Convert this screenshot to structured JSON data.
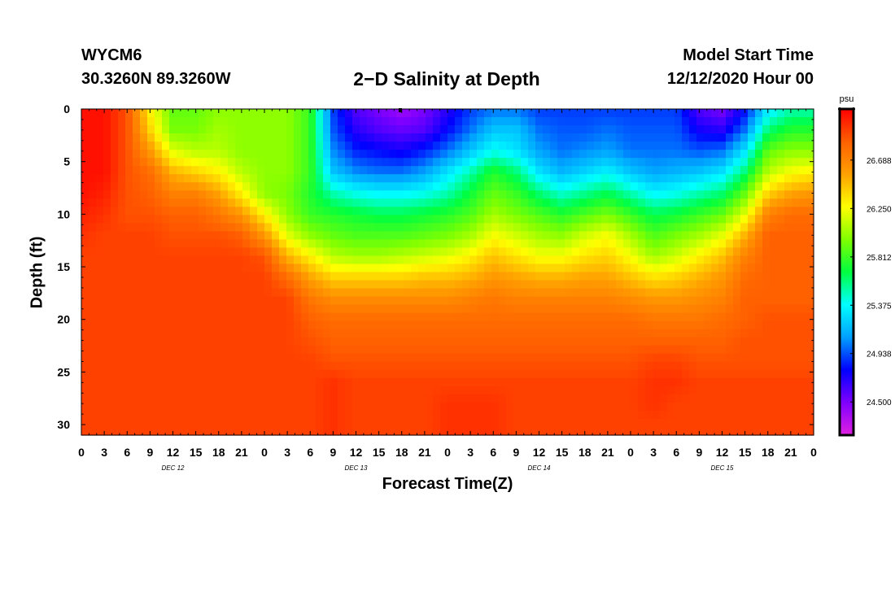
{
  "header": {
    "station": "WYCM6",
    "coordinates": "30.3260N 89.3260W",
    "title": "2−D Salinity at Depth",
    "start_label": "Model Start Time",
    "start_value": "12/12/2020 Hour 00"
  },
  "chart_data": {
    "type": "heatmap",
    "title": "2−D Salinity at Depth",
    "xlabel": "Forecast Time(Z)",
    "ylabel": "Depth (ft)",
    "x_tick_labels": [
      "0",
      "3",
      "6",
      "9",
      "12",
      "15",
      "18",
      "21",
      "0",
      "3",
      "6",
      "9",
      "12",
      "15",
      "18",
      "21",
      "0",
      "3",
      "6",
      "9",
      "12",
      "15",
      "18",
      "21",
      "0",
      "3",
      "6",
      "9",
      "12",
      "15",
      "18",
      "21",
      "0"
    ],
    "day_labels": [
      "DEC 12",
      "DEC 13",
      "DEC 14",
      "DEC 15"
    ],
    "x_range_hours": [
      0,
      96
    ],
    "y_tick_labels": [
      "0",
      "5",
      "10",
      "15",
      "20",
      "25",
      "30"
    ],
    "y_range_ft": [
      0,
      31
    ],
    "colorbar": {
      "unit": "psu",
      "tick_labels": [
        "26.688",
        "26.250",
        "25.812",
        "25.375",
        "24.938",
        "24.500"
      ],
      "range": [
        24.2,
        27.15
      ],
      "colors": [
        "#e020e0",
        "#7f00ff",
        "#0000ff",
        "#00a0ff",
        "#00ffff",
        "#00ff40",
        "#80ff00",
        "#ffff00",
        "#ffa000",
        "#ff6000",
        "#ff0000"
      ]
    },
    "depth_levels_ft": [
      0,
      2,
      4,
      6,
      8,
      10,
      12,
      14,
      16,
      18,
      20,
      22,
      24,
      26,
      28,
      30
    ],
    "time_hours": [
      0,
      3,
      6,
      9,
      12,
      15,
      18,
      21,
      24,
      27,
      30,
      33,
      36,
      39,
      42,
      45,
      48,
      51,
      54,
      57,
      60,
      63,
      66,
      69,
      72,
      75,
      78,
      81,
      84,
      87,
      90,
      93,
      96
    ],
    "salinity_profiles_psu": [
      {
        "t": 0,
        "values": [
          27.1,
          27.1,
          27.1,
          27.1,
          27.1,
          27.05,
          27.0,
          26.95,
          26.95,
          26.95,
          26.95,
          26.95,
          26.95,
          26.95,
          26.95,
          26.95
        ]
      },
      {
        "t": 3,
        "values": [
          27.1,
          27.1,
          27.1,
          27.1,
          27.05,
          27.0,
          26.95,
          26.95,
          26.95,
          26.95,
          26.95,
          26.95,
          26.95,
          26.95,
          26.95,
          26.95
        ]
      },
      {
        "t": 6,
        "values": [
          26.9,
          26.9,
          26.9,
          26.9,
          26.9,
          26.9,
          26.95,
          26.95,
          26.95,
          26.95,
          26.95,
          26.95,
          26.95,
          26.95,
          26.95,
          26.95
        ]
      },
      {
        "t": 9,
        "values": [
          26.3,
          26.4,
          26.6,
          26.8,
          26.85,
          26.9,
          26.95,
          26.95,
          26.95,
          26.95,
          26.95,
          26.95,
          26.95,
          26.95,
          26.95,
          26.95
        ]
      },
      {
        "t": 12,
        "values": [
          25.9,
          25.95,
          26.2,
          26.5,
          26.7,
          26.85,
          26.9,
          26.95,
          26.95,
          26.95,
          26.95,
          26.95,
          26.95,
          26.95,
          26.95,
          26.95
        ]
      },
      {
        "t": 15,
        "values": [
          25.9,
          25.95,
          26.1,
          26.4,
          26.7,
          26.85,
          26.9,
          26.95,
          26.95,
          26.95,
          26.95,
          26.95,
          26.95,
          26.95,
          26.95,
          26.95
        ]
      },
      {
        "t": 18,
        "values": [
          26.0,
          26.05,
          26.1,
          26.3,
          26.55,
          26.75,
          26.9,
          26.95,
          26.95,
          26.95,
          26.95,
          26.95,
          26.95,
          26.95,
          26.95,
          26.95
        ]
      },
      {
        "t": 21,
        "values": [
          26.0,
          26.0,
          26.0,
          26.1,
          26.3,
          26.6,
          26.85,
          26.95,
          26.95,
          26.95,
          26.95,
          26.95,
          26.95,
          26.95,
          26.95,
          26.95
        ]
      },
      {
        "t": 24,
        "values": [
          26.0,
          26.0,
          26.0,
          26.0,
          26.0,
          26.3,
          26.6,
          26.9,
          26.95,
          26.95,
          26.95,
          26.95,
          26.95,
          26.95,
          26.95,
          26.95
        ]
      },
      {
        "t": 27,
        "values": [
          26.0,
          26.0,
          26.0,
          26.0,
          25.95,
          26.0,
          26.2,
          26.5,
          26.8,
          26.95,
          26.95,
          26.95,
          26.95,
          26.95,
          26.95,
          26.95
        ]
      },
      {
        "t": 30,
        "values": [
          25.8,
          25.8,
          25.8,
          25.8,
          25.75,
          25.8,
          26.0,
          26.3,
          26.55,
          26.75,
          26.85,
          26.9,
          26.95,
          26.95,
          26.95,
          26.95
        ]
      },
      {
        "t": 33,
        "values": [
          24.9,
          24.95,
          25.05,
          25.2,
          25.5,
          25.75,
          25.9,
          26.1,
          26.4,
          26.65,
          26.8,
          26.85,
          26.9,
          27.0,
          27.0,
          27.0
        ]
      },
      {
        "t": 36,
        "values": [
          24.6,
          24.7,
          24.85,
          25.05,
          25.4,
          25.7,
          25.85,
          26.05,
          26.4,
          26.65,
          26.8,
          26.85,
          26.9,
          26.95,
          26.95,
          26.95
        ]
      },
      {
        "t": 39,
        "values": [
          24.5,
          24.6,
          24.8,
          25.0,
          25.35,
          25.65,
          25.85,
          26.05,
          26.4,
          26.65,
          26.8,
          26.85,
          26.9,
          26.95,
          26.95,
          26.95
        ]
      },
      {
        "t": 42,
        "values": [
          24.4,
          24.55,
          24.75,
          25.0,
          25.35,
          25.65,
          25.85,
          26.1,
          26.4,
          26.65,
          26.8,
          26.85,
          26.9,
          26.95,
          26.95,
          26.95
        ]
      },
      {
        "t": 45,
        "values": [
          24.5,
          24.6,
          24.85,
          25.1,
          25.4,
          25.7,
          25.9,
          26.15,
          26.45,
          26.65,
          26.8,
          26.85,
          26.9,
          26.95,
          26.95,
          26.95
        ]
      },
      {
        "t": 48,
        "values": [
          24.7,
          24.8,
          25.0,
          25.3,
          25.5,
          25.75,
          25.95,
          26.2,
          26.45,
          26.65,
          26.8,
          26.85,
          26.9,
          26.95,
          27.0,
          27.0
        ]
      },
      {
        "t": 51,
        "values": [
          24.9,
          25.0,
          25.2,
          25.5,
          25.7,
          25.85,
          26.05,
          26.3,
          26.5,
          26.7,
          26.8,
          26.85,
          26.9,
          26.95,
          27.0,
          27.0
        ]
      },
      {
        "t": 54,
        "values": [
          25.0,
          25.2,
          25.4,
          25.75,
          25.9,
          26.05,
          26.25,
          26.45,
          26.6,
          26.75,
          26.8,
          26.85,
          26.9,
          26.95,
          27.0,
          27.0
        ]
      },
      {
        "t": 57,
        "values": [
          25.0,
          25.2,
          25.3,
          25.6,
          25.8,
          25.95,
          26.15,
          26.35,
          26.55,
          26.7,
          26.8,
          26.85,
          26.9,
          26.95,
          26.95,
          26.95
        ]
      },
      {
        "t": 60,
        "values": [
          24.9,
          25.0,
          25.1,
          25.3,
          25.6,
          25.85,
          26.05,
          26.25,
          26.5,
          26.7,
          26.8,
          26.85,
          26.9,
          26.95,
          26.95,
          26.95
        ]
      },
      {
        "t": 63,
        "values": [
          24.9,
          24.95,
          25.0,
          25.15,
          25.45,
          25.75,
          26.0,
          26.25,
          26.5,
          26.7,
          26.8,
          26.85,
          26.9,
          26.95,
          26.95,
          26.95
        ]
      },
      {
        "t": 66,
        "values": [
          24.9,
          24.95,
          25.05,
          25.25,
          25.55,
          25.85,
          26.15,
          26.35,
          26.55,
          26.7,
          26.8,
          26.85,
          26.9,
          26.95,
          26.95,
          26.95
        ]
      },
      {
        "t": 69,
        "values": [
          24.9,
          25.0,
          25.1,
          25.35,
          25.65,
          25.95,
          26.25,
          26.4,
          26.55,
          26.7,
          26.8,
          26.85,
          26.9,
          26.95,
          26.95,
          26.95
        ]
      },
      {
        "t": 72,
        "values": [
          24.9,
          24.95,
          25.0,
          25.2,
          25.5,
          25.8,
          26.05,
          26.25,
          26.45,
          26.65,
          26.8,
          26.85,
          26.9,
          26.95,
          26.95,
          26.95
        ]
      },
      {
        "t": 75,
        "values": [
          24.9,
          24.95,
          25.0,
          25.1,
          25.35,
          25.65,
          25.85,
          26.05,
          26.35,
          26.6,
          26.75,
          26.85,
          26.95,
          27.0,
          27.0,
          26.95
        ]
      },
      {
        "t": 78,
        "values": [
          24.9,
          24.95,
          25.0,
          25.15,
          25.4,
          25.7,
          25.95,
          26.15,
          26.4,
          26.6,
          26.75,
          26.85,
          26.95,
          27.0,
          26.95,
          26.95
        ]
      },
      {
        "t": 81,
        "values": [
          24.6,
          24.75,
          24.95,
          25.2,
          25.5,
          25.8,
          26.05,
          26.3,
          26.5,
          26.65,
          26.75,
          26.85,
          26.9,
          26.95,
          26.95,
          26.95
        ]
      },
      {
        "t": 84,
        "values": [
          24.5,
          24.7,
          25.0,
          25.3,
          25.6,
          25.9,
          26.2,
          26.45,
          26.6,
          26.7,
          26.8,
          26.85,
          26.9,
          26.95,
          26.95,
          26.95
        ]
      },
      {
        "t": 87,
        "values": [
          24.8,
          25.0,
          25.3,
          25.6,
          25.9,
          26.2,
          26.5,
          26.7,
          26.8,
          26.85,
          26.85,
          26.9,
          26.9,
          26.95,
          26.95,
          26.95
        ]
      },
      {
        "t": 90,
        "values": [
          25.3,
          25.6,
          25.9,
          26.1,
          26.4,
          26.7,
          26.85,
          26.85,
          26.85,
          26.85,
          26.9,
          26.9,
          26.9,
          26.95,
          26.95,
          26.95
        ]
      },
      {
        "t": 93,
        "values": [
          25.5,
          25.75,
          26.0,
          26.25,
          26.55,
          26.8,
          26.85,
          26.85,
          26.85,
          26.85,
          26.9,
          26.9,
          26.9,
          26.95,
          26.95,
          26.95
        ]
      },
      {
        "t": 96,
        "values": [
          25.5,
          25.75,
          26.0,
          26.3,
          26.6,
          26.8,
          26.85,
          26.85,
          26.85,
          26.85,
          26.9,
          26.9,
          26.9,
          26.95,
          26.95,
          26.95
        ]
      }
    ]
  }
}
